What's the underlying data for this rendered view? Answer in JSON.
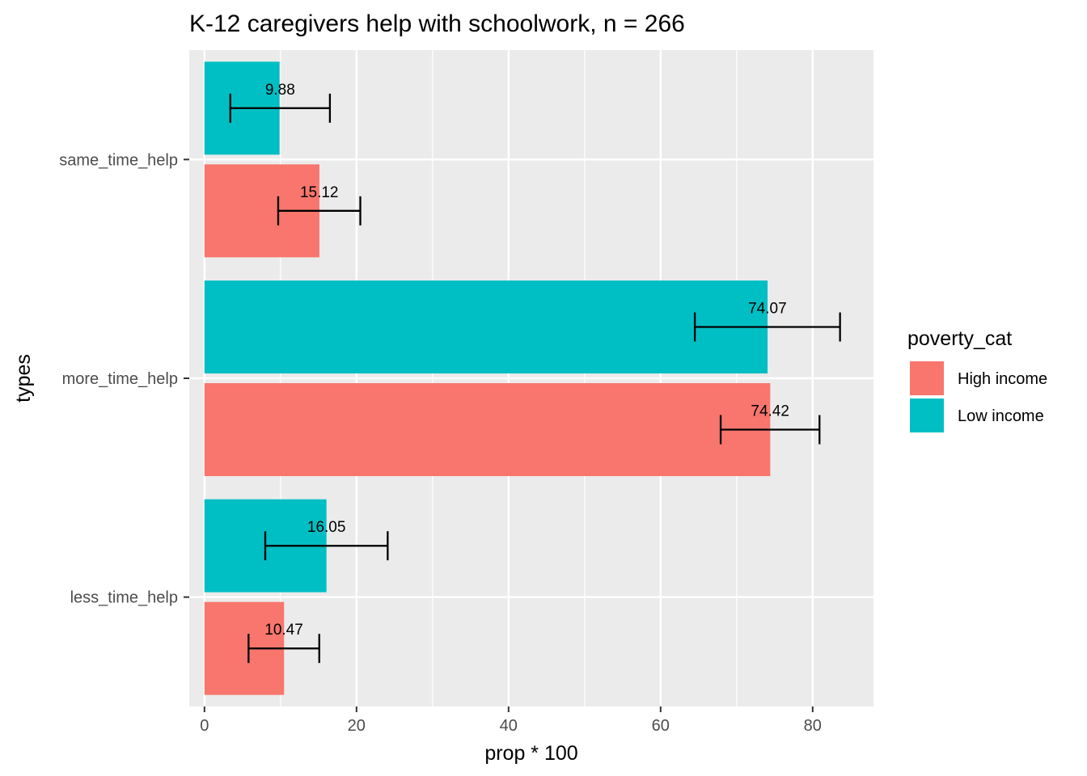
{
  "chart_data": {
    "type": "bar",
    "orientation": "horizontal",
    "title": "K-12 caregivers help with schoolwork, n = 266",
    "xlabel": "prop * 100",
    "ylabel": "types",
    "xlim": [
      -2,
      88
    ],
    "x_ticks": [
      0,
      20,
      40,
      60,
      80
    ],
    "categories": [
      "same_time_help",
      "more_time_help",
      "less_time_help"
    ],
    "legend": {
      "title": "poverty_cat",
      "position": "right"
    },
    "grid": true,
    "series": [
      {
        "name": "High income",
        "color": "#F8766D",
        "values": [
          15.12,
          74.42,
          10.47
        ],
        "ci_low": [
          9.7,
          67.9,
          5.8
        ],
        "ci_high": [
          20.5,
          80.9,
          15.1
        ],
        "labels": [
          "15.12",
          "74.42",
          "10.47"
        ]
      },
      {
        "name": "Low income",
        "color": "#00BFC4",
        "values": [
          9.88,
          74.07,
          16.05
        ],
        "ci_low": [
          3.4,
          64.5,
          8.0
        ],
        "ci_high": [
          16.5,
          83.6,
          24.1
        ],
        "labels": [
          "9.88",
          "74.07",
          "16.05"
        ]
      }
    ]
  }
}
